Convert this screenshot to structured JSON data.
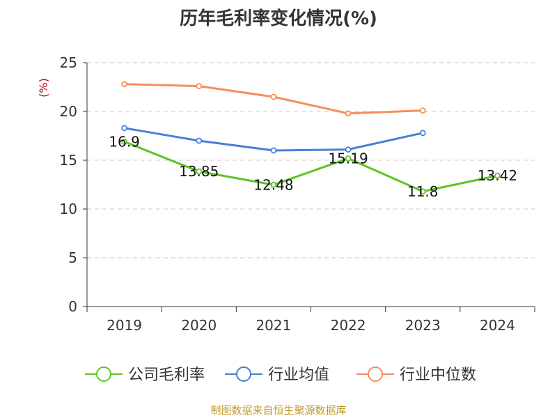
{
  "page": {
    "title": "历年毛利率变化情况(%)",
    "source": "制图数据来自恒生聚源数据库"
  },
  "chart_data": {
    "type": "line",
    "title": "历年毛利率变化情况(%)",
    "ylabel": "(%)",
    "xlabel": "",
    "categories": [
      "2019",
      "2020",
      "2021",
      "2022",
      "2023",
      "2024"
    ],
    "ylim": [
      0,
      25
    ],
    "yticks": [
      0,
      5,
      10,
      15,
      20,
      25
    ],
    "grid": true,
    "legend_position": "bottom",
    "series": [
      {
        "name": "公司毛利率",
        "color": "#5cc423",
        "values": [
          16.9,
          13.85,
          12.48,
          15.19,
          11.8,
          13.42
        ],
        "labels": [
          "16.9",
          "13.85",
          "12.48",
          "15.19",
          "11.8",
          "13.42"
        ]
      },
      {
        "name": "行业均值",
        "color": "#4a7fd6",
        "values": [
          18.3,
          17.0,
          16.0,
          16.1,
          17.8,
          null
        ]
      },
      {
        "name": "行业中位数",
        "color": "#f78e58",
        "values": [
          22.8,
          22.6,
          21.5,
          19.8,
          20.1,
          null
        ]
      }
    ]
  }
}
